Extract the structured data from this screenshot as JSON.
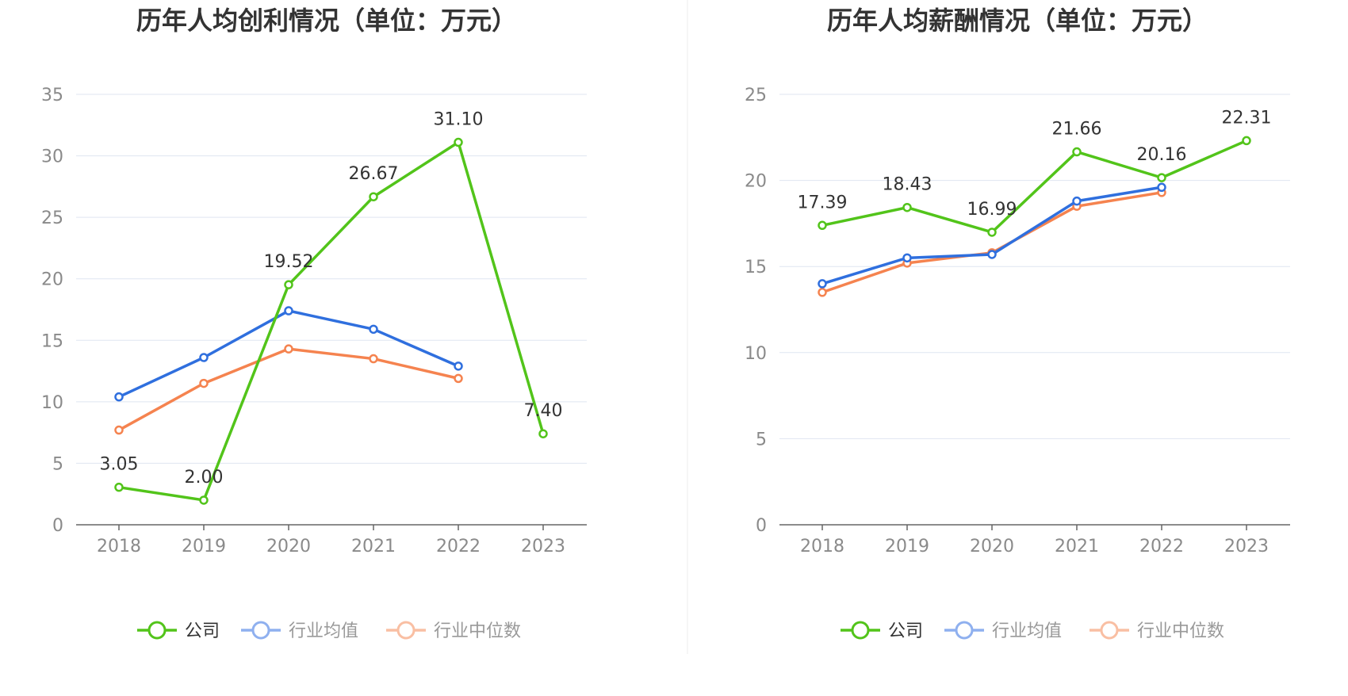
{
  "chart_data": [
    {
      "type": "line",
      "title": "历年人均创利情况（单位：万元）",
      "categories": [
        "2018",
        "2019",
        "2020",
        "2021",
        "2022",
        "2023"
      ],
      "ylim": [
        0,
        35
      ],
      "yticks": [
        0,
        5,
        10,
        15,
        20,
        25,
        30,
        35
      ],
      "grid": true,
      "legend_position": "bottom-center",
      "series": [
        {
          "name": "公司",
          "color": "#52c41a",
          "values": [
            3.05,
            2.0,
            19.52,
            26.67,
            31.1,
            7.4
          ],
          "labels": [
            "3.05",
            "2.00",
            "19.52",
            "26.67",
            "31.10",
            "7.40"
          ]
        },
        {
          "name": "行业均值",
          "color": "#2f6fde",
          "values": [
            10.4,
            13.6,
            17.4,
            15.9,
            12.9,
            null
          ]
        },
        {
          "name": "行业中位数",
          "color": "#f5834f",
          "values": [
            7.7,
            11.5,
            14.3,
            13.5,
            11.9,
            null
          ]
        }
      ]
    },
    {
      "type": "line",
      "title": "历年人均薪酬情况（单位：万元）",
      "categories": [
        "2018",
        "2019",
        "2020",
        "2021",
        "2022",
        "2023"
      ],
      "ylim": [
        0,
        25
      ],
      "yticks": [
        0,
        5,
        10,
        15,
        20,
        25
      ],
      "grid": true,
      "legend_position": "bottom-center",
      "series": [
        {
          "name": "公司",
          "color": "#52c41a",
          "values": [
            17.39,
            18.43,
            16.99,
            21.66,
            20.16,
            22.31
          ],
          "labels": [
            "17.39",
            "18.43",
            "16.99",
            "21.66",
            "20.16",
            "22.31"
          ]
        },
        {
          "name": "行业均值",
          "color": "#2f6fde",
          "values": [
            14.0,
            15.5,
            15.7,
            18.8,
            19.6,
            null
          ]
        },
        {
          "name": "行业中位数",
          "color": "#f5834f",
          "values": [
            13.5,
            15.2,
            15.8,
            18.5,
            19.3,
            null
          ]
        }
      ]
    }
  ],
  "legend": {
    "items": [
      {
        "label": "公司",
        "color": "#52c41a",
        "text_color": "#333333",
        "marker_fill": "#ffffff"
      },
      {
        "label": "行业均值",
        "color": "#8fb0ef",
        "text_color": "#999999",
        "marker_fill": "#ffffff"
      },
      {
        "label": "行业中位数",
        "color": "#f9bfa3",
        "text_color": "#999999",
        "marker_fill": "#ffffff"
      }
    ]
  }
}
